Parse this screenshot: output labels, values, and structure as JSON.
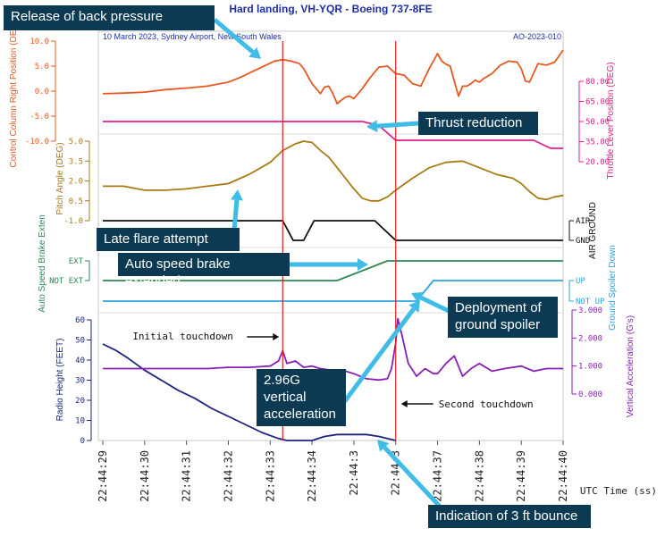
{
  "chart_data": {
    "type": "line",
    "title": "Hard landing, VH-YQR - Boeing 737-8FE",
    "subtitle": "10 March 2023, Sydney Airport, New South Wales",
    "report_id": "AO-2023-010",
    "xlabel": "UTC Time (ss)",
    "x_ticks": [
      "22:44:29",
      "22:44:30",
      "22:44:31",
      "22:44:32",
      "22:44:33",
      "22:44:34",
      "22:44:35",
      "22:44:36",
      "22:44:37",
      "22:44:38",
      "22:44:39",
      "22:44:40"
    ],
    "x_ticks_shown": [
      "22:44:29",
      "22:44:30",
      "22:44:31",
      "22:44:32",
      "22:44:33",
      "22:44:34",
      "22:44:3",
      "22:44:37",
      "22:44:38",
      "22:44:39",
      "22:44:40"
    ],
    "xlim": [
      0,
      11
    ],
    "panels": [
      {
        "name": "Control Column Right Position",
        "axis_label": "Control Column Right Position (DEG)",
        "side": "left",
        "color": "#e8581e",
        "ticks": [
          "10.0",
          "5.0",
          "0.0",
          "-5.0",
          "-10.0"
        ],
        "ylim": [
          -10,
          10
        ],
        "x": [
          0,
          0.5,
          1,
          1.5,
          2,
          2.5,
          3,
          3.3,
          3.6,
          3.9,
          4.1,
          4.3,
          4.5,
          4.7,
          4.8,
          4.9,
          5.0,
          5.1,
          5.2,
          5.3,
          5.4,
          5.5,
          5.6,
          5.7,
          5.8,
          5.9,
          6.0,
          6.2,
          6.4,
          6.6,
          6.8,
          7.0,
          7.2,
          7.4,
          7.6,
          7.8,
          8.0,
          8.1,
          8.2,
          8.3,
          8.4,
          8.5,
          8.6,
          8.7,
          8.8,
          8.9,
          9.0,
          9.1,
          9.3,
          9.5,
          9.7,
          9.9,
          10.0,
          10.1,
          10.2,
          10.4,
          10.6,
          10.8,
          11
        ],
        "y": [
          -0.5,
          -0.4,
          -0.2,
          0.3,
          0.6,
          1.0,
          1.8,
          2.8,
          4.0,
          5.2,
          6.0,
          6.3,
          6.0,
          5.5,
          4.5,
          3.0,
          1.5,
          0.5,
          -0.5,
          0.8,
          1.0,
          -0.5,
          -2.5,
          -1.8,
          -1.2,
          -1.0,
          -1.5,
          0.5,
          2.8,
          4.8,
          5.0,
          3.5,
          3.2,
          1.5,
          1.0,
          4.5,
          7.5,
          6.0,
          5.4,
          5.0,
          2.0,
          -1.0,
          1.0,
          1.0,
          1.5,
          2.2,
          1.8,
          2.5,
          3.5,
          5.2,
          6.0,
          5.8,
          4.5,
          2.0,
          1.8,
          5.5,
          5.2,
          5.8,
          8.2
        ]
      },
      {
        "name": "Throttle Lever Position",
        "axis_label": "Throttle Lever Position (DEG)",
        "side": "right",
        "color": "#e0208a",
        "ticks": [
          "80.00",
          "65.00",
          "50.00",
          "35.00",
          "20.00"
        ],
        "ylim": [
          20,
          80
        ],
        "x": [
          0,
          5,
          6.2,
          6.6,
          7.0,
          8.0,
          9.0,
          10.0,
          10.3,
          10.7,
          11
        ],
        "y": [
          50,
          50,
          50,
          47,
          36,
          36,
          36,
          36,
          36,
          30,
          30
        ]
      },
      {
        "name": "Pitch Angle",
        "axis_label": "Pitch Angle (DEG)",
        "side": "left",
        "color": "#a87a14",
        "ticks": [
          "5.0",
          "3.5",
          "2.0",
          "0.5",
          "-1.0"
        ],
        "ylim": [
          -1,
          5
        ],
        "x": [
          0,
          0.5,
          1,
          1.5,
          2,
          2.5,
          3,
          3.5,
          4,
          4.3,
          4.6,
          4.8,
          5.0,
          5.2,
          5.4,
          5.6,
          5.8,
          6.0,
          6.2,
          6.4,
          6.6,
          6.8,
          7.0,
          7.4,
          7.8,
          8.2,
          8.6,
          9.0,
          9.4,
          9.8,
          10.0,
          10.2,
          10.4,
          10.6,
          10.8,
          11
        ],
        "y": [
          1.6,
          1.6,
          1.3,
          1.3,
          1.4,
          1.6,
          1.8,
          2.5,
          3.4,
          4.3,
          4.8,
          5.0,
          4.9,
          4.3,
          3.8,
          3.0,
          2.2,
          1.4,
          0.7,
          0.5,
          0.5,
          0.8,
          1.3,
          2.2,
          3.0,
          3.4,
          3.5,
          3.0,
          2.5,
          2.2,
          1.8,
          1.2,
          0.7,
          0.6,
          0.8,
          0.9
        ]
      },
      {
        "name": "Air/Ground",
        "axis_label": "AIR GROUND",
        "side": "right",
        "color": "#111111",
        "ticks": [
          "AIR",
          "GND"
        ],
        "x": [
          0,
          4.3,
          4.55,
          4.8,
          5.05,
          5.2,
          5.4,
          6.5,
          7.0,
          7.4,
          8.0,
          9.0,
          11
        ],
        "y": [
          "AIR",
          "AIR",
          "GND",
          "GND",
          "AIR",
          "AIR",
          "AIR",
          "AIR",
          "GND",
          "GND",
          "GND",
          "GND",
          "GND"
        ]
      },
      {
        "name": "Auto Speed Brake Extended",
        "axis_label": "Auto Speed Brake Exten",
        "side": "left",
        "color": "#2f8a55",
        "ticks": [
          "EXT",
          "NOT EXT"
        ],
        "x": [
          0,
          5.0,
          5.6,
          6.8,
          7.3,
          9.0,
          11
        ],
        "y": [
          "NOT EXT",
          "NOT EXT",
          "NOT EXT",
          "EXT",
          "EXT",
          "EXT",
          "EXT"
        ]
      },
      {
        "name": "Ground Spoiler Down",
        "axis_label": "Ground Spoiler Down",
        "side": "right",
        "color": "#2aa7e0",
        "ticks": [
          "UP",
          "NOT UP"
        ],
        "x": [
          0,
          5.0,
          6.5,
          7.5,
          7.9,
          9.0,
          11
        ],
        "y": [
          "NOT UP",
          "NOT UP",
          "NOT UP",
          "NOT UP",
          "UP",
          "UP",
          "UP"
        ]
      },
      {
        "name": "Radio Height",
        "axis_label": "Radio Height (FEET)",
        "side": "left",
        "color": "#1a2580",
        "ticks": [
          "60",
          "50",
          "40",
          "30",
          "20",
          "10",
          "0"
        ],
        "ylim": [
          0,
          60
        ],
        "x": [
          0,
          0.3,
          0.6,
          1,
          1.4,
          1.8,
          2.2,
          2.6,
          3,
          3.4,
          3.8,
          4.2,
          4.4,
          4.6,
          5.0,
          5.3,
          5.6,
          6.0,
          6.3,
          6.6,
          6.9,
          7.0
        ],
        "y": [
          48,
          45,
          41,
          35,
          30,
          25,
          21,
          16,
          12,
          8,
          4,
          1,
          0,
          0,
          0,
          2,
          3,
          3,
          3,
          2,
          0.5,
          0
        ]
      },
      {
        "name": "Vertical Acceleration",
        "axis_label": "Vertical Acceleration (G's)",
        "side": "right",
        "color": "#8a1fb5",
        "ticks": [
          "3.000",
          "2.000",
          "1.000",
          "0.000"
        ],
        "ylim": [
          0,
          3.3
        ],
        "x": [
          0,
          0.5,
          1,
          1.5,
          2,
          2.5,
          3,
          3.5,
          4,
          4.2,
          4.3,
          4.4,
          4.6,
          4.8,
          5.0,
          5.2,
          5.4,
          5.6,
          5.8,
          6.0,
          6.3,
          6.6,
          6.8,
          6.9,
          7.0,
          7.05,
          7.15,
          7.3,
          7.5,
          7.7,
          7.9,
          8.0,
          8.2,
          8.4,
          8.6,
          8.8,
          9.0,
          9.3,
          9.6,
          10,
          10.3,
          10.6,
          11
        ],
        "y": [
          1.0,
          1.0,
          1.0,
          1.0,
          1.0,
          1.0,
          1.05,
          1.05,
          1.1,
          1.3,
          1.7,
          1.2,
          1.3,
          1.05,
          1.1,
          1.0,
          0.95,
          0.9,
          0.9,
          0.8,
          0.6,
          0.55,
          0.6,
          1.0,
          2.0,
          2.96,
          2.3,
          1.2,
          0.7,
          1.0,
          0.8,
          0.8,
          1.2,
          1.5,
          0.7,
          1.0,
          1.2,
          0.9,
          1.0,
          1.1,
          0.9,
          1.0,
          1.0
        ]
      }
    ],
    "events": [
      {
        "label": "Initial touchdown",
        "x": 4.3
      },
      {
        "label": "Second touchdown",
        "x": 7.0
      }
    ],
    "annotations": [
      {
        "label": "Release of back pressure",
        "points_to": "Control Column Right Position",
        "x": 4.0
      },
      {
        "label": "Thrust reduction",
        "points_to": "Throttle Lever Position",
        "x": 5.8
      },
      {
        "label": "Late flare attempt",
        "points_to": "Pitch Angle",
        "x": 3.0
      },
      {
        "label": "Auto speed brake extended",
        "points_to": "Auto Speed Brake Extended",
        "x": 6.5
      },
      {
        "label": "Deployment of ground spoiler",
        "points_to": "Ground Spoiler Down",
        "x": 7.0
      },
      {
        "label": "2.96G vertical acceleration",
        "points_to": "Vertical Acceleration",
        "x": 7.0
      },
      {
        "label": "Indication of 3 ft bounce",
        "points_to": "Radio Height",
        "x": 6.0
      }
    ]
  },
  "colors": {
    "callout_bg": "#0c3a52",
    "callout_arrow": "#3fbde6",
    "event_line": "#e02020",
    "title": "#1f2ea8"
  }
}
